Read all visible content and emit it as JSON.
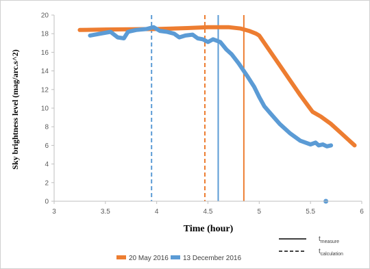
{
  "chart_data": {
    "type": "line",
    "xlabel": "Time (hour)",
    "ylabel": "Sky brightness level (mag/arc.s^2)",
    "xlim": [
      3,
      6
    ],
    "ylim": [
      0,
      20
    ],
    "xticks": [
      "3",
      "3.5",
      "4",
      "4.5",
      "5",
      "5.5",
      "6"
    ],
    "yticks": [
      "0",
      "2",
      "4",
      "6",
      "8",
      "10",
      "12",
      "14",
      "16",
      "18",
      "20"
    ],
    "grid": false,
    "legend_position": "bottom",
    "series": [
      {
        "name": "20 May 2016",
        "color": "#ED7D31",
        "points": [
          [
            3.25,
            18.4
          ],
          [
            3.5,
            18.45
          ],
          [
            4.0,
            18.5
          ],
          [
            4.3,
            18.6
          ],
          [
            4.5,
            18.7
          ],
          [
            4.7,
            18.7
          ],
          [
            4.82,
            18.55
          ],
          [
            4.9,
            18.3
          ],
          [
            4.97,
            18.0
          ],
          [
            5.0,
            17.8
          ],
          [
            5.05,
            17.0
          ],
          [
            5.1,
            16.2
          ],
          [
            5.2,
            14.6
          ],
          [
            5.3,
            13.0
          ],
          [
            5.4,
            11.4
          ],
          [
            5.48,
            10.2
          ],
          [
            5.52,
            9.6
          ],
          [
            5.6,
            9.1
          ],
          [
            5.7,
            8.3
          ],
          [
            5.8,
            7.3
          ],
          [
            5.88,
            6.5
          ],
          [
            5.93,
            6.0
          ]
        ]
      },
      {
        "name": "13 December 2016",
        "color": "#5B9BD5",
        "points": [
          [
            3.35,
            17.8
          ],
          [
            3.45,
            18.0
          ],
          [
            3.55,
            18.2
          ],
          [
            3.62,
            17.6
          ],
          [
            3.68,
            17.5
          ],
          [
            3.72,
            18.2
          ],
          [
            3.8,
            18.4
          ],
          [
            3.9,
            18.5
          ],
          [
            3.97,
            18.7
          ],
          [
            4.03,
            18.3
          ],
          [
            4.1,
            18.2
          ],
          [
            4.17,
            18.0
          ],
          [
            4.22,
            17.6
          ],
          [
            4.28,
            17.8
          ],
          [
            4.35,
            17.9
          ],
          [
            4.4,
            17.5
          ],
          [
            4.45,
            17.4
          ],
          [
            4.5,
            17.1
          ],
          [
            4.55,
            17.4
          ],
          [
            4.62,
            17.1
          ],
          [
            4.68,
            16.3
          ],
          [
            4.73,
            15.8
          ],
          [
            4.8,
            14.8
          ],
          [
            4.88,
            13.5
          ],
          [
            4.95,
            12.3
          ],
          [
            5.0,
            11.2
          ],
          [
            5.05,
            10.2
          ],
          [
            5.12,
            9.3
          ],
          [
            5.2,
            8.3
          ],
          [
            5.3,
            7.3
          ],
          [
            5.4,
            6.5
          ],
          [
            5.5,
            6.1
          ],
          [
            5.55,
            6.3
          ],
          [
            5.58,
            6.0
          ],
          [
            5.62,
            6.1
          ],
          [
            5.66,
            5.9
          ],
          [
            5.7,
            6.0
          ]
        ]
      }
    ],
    "extra_points": [
      {
        "series": "13 December 2016",
        "x": 5.65,
        "y": 0
      }
    ],
    "vertical_lines": [
      {
        "series": "13 December 2016",
        "x": 3.95,
        "style": "dashed"
      },
      {
        "series": "20 May 2016",
        "x": 4.47,
        "style": "dashed"
      },
      {
        "series": "13 December 2016",
        "x": 4.6,
        "style": "solid"
      },
      {
        "series": "20 May 2016",
        "x": 4.85,
        "style": "solid"
      }
    ],
    "legend": {
      "series_entries": [
        "20 May 2016",
        "13 December 2016"
      ],
      "style_entries": [
        {
          "style": "solid",
          "label_main": "t",
          "label_sub": "measure"
        },
        {
          "style": "dashed",
          "label_main": "t",
          "label_sub": "calculation"
        }
      ]
    }
  }
}
